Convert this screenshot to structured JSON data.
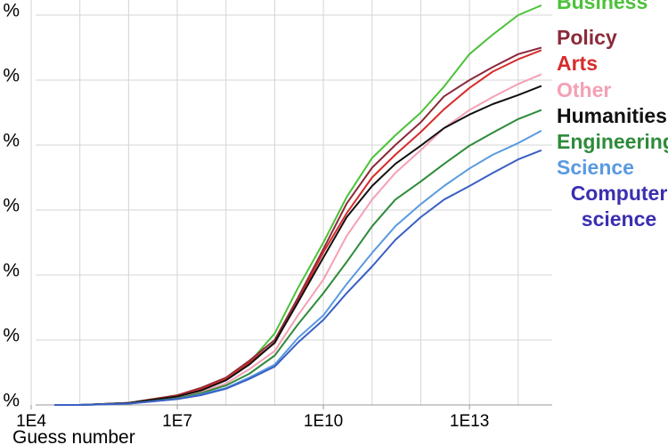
{
  "chart_data": {
    "type": "line",
    "x_label": "Guess number",
    "x": [
      30000,
      100000,
      1000000,
      10000000,
      30000000,
      100000000,
      300000000,
      1000000000,
      3000000000,
      10000000000,
      30000000000,
      100000000000,
      300000000000,
      1000000000000,
      3000000000000,
      10000000000000,
      30000000000000,
      100000000000000,
      300000000000000
    ],
    "xlim": [
      10000,
      500000000000000
    ],
    "xlog": true,
    "xticks": [
      {
        "value": 10000,
        "label": "1E4"
      },
      {
        "value": 10000000,
        "label": "1E7"
      },
      {
        "value": 10000000000,
        "label": "1E10"
      },
      {
        "value": 10000000000000,
        "label": "1E13"
      }
    ],
    "ylim": [
      0,
      62
    ],
    "yticks": [
      {
        "value": 0,
        "label": "%"
      },
      {
        "value": 10,
        "label": "%"
      },
      {
        "value": 20,
        "label": "%"
      },
      {
        "value": 30,
        "label": "%"
      },
      {
        "value": 40,
        "label": "%"
      },
      {
        "value": 50,
        "label": "%"
      },
      {
        "value": 60,
        "label": "%"
      }
    ],
    "grid": true,
    "series": [
      {
        "name": "Business",
        "color": "#4cc23a",
        "values": [
          0,
          0,
          0.3,
          1.5,
          2.4,
          4,
          6.5,
          11,
          18,
          25,
          32,
          38,
          41.5,
          45,
          49,
          54,
          57,
          60,
          61.5
        ]
      },
      {
        "name": "Policy",
        "color": "#8b2a3a",
        "values": [
          0,
          0,
          0.3,
          1.5,
          2.6,
          4.2,
          6.8,
          10,
          16.5,
          24,
          31,
          36.5,
          40,
          43.5,
          47.5,
          50,
          52,
          54,
          55
        ]
      },
      {
        "name": "Arts",
        "color": "#d62c2c",
        "values": [
          0,
          0,
          0.3,
          1.4,
          2.4,
          4,
          6.5,
          9.5,
          16,
          23.5,
          29.5,
          35,
          38.5,
          42,
          45.5,
          48.8,
          51.3,
          53.2,
          54.6
        ]
      },
      {
        "name": "Other",
        "color": "#f4a0b5",
        "values": [
          0,
          0,
          0.2,
          1.2,
          2,
          3.3,
          5.5,
          8.3,
          13.8,
          19.3,
          26,
          31.6,
          35.7,
          39.2,
          42.6,
          45.4,
          47.4,
          49.4,
          50.9
        ]
      },
      {
        "name": "Humanities",
        "color": "#111111",
        "values": [
          0,
          0,
          0.3,
          1.3,
          2.2,
          3.8,
          6.2,
          9.6,
          15.8,
          22.7,
          28.9,
          33.7,
          37.1,
          39.9,
          42.6,
          44.7,
          46.3,
          47.7,
          49.1
        ]
      },
      {
        "name": "Engineering",
        "color": "#2e8b3a",
        "values": [
          0,
          0,
          0.2,
          1,
          1.8,
          3,
          4.8,
          7.6,
          12.4,
          17.2,
          22,
          27.5,
          31.6,
          34.4,
          37.1,
          39.9,
          41.9,
          44,
          45.4
        ]
      },
      {
        "name": "Science",
        "color": "#5a9ae0",
        "values": [
          0,
          0,
          0.2,
          0.9,
          1.6,
          2.6,
          4.2,
          6.2,
          10.3,
          13.8,
          18.6,
          23.4,
          27.5,
          30.9,
          33.7,
          36.4,
          38.5,
          40.3,
          42.2
        ]
      },
      {
        "name": "Computer science",
        "color": "#3a5fc4",
        "values": [
          0,
          0,
          0.2,
          0.9,
          1.5,
          2.5,
          4,
          5.9,
          9.6,
          13.1,
          17.2,
          21.3,
          25.4,
          28.9,
          31.6,
          33.7,
          35.7,
          37.8,
          39.2
        ]
      }
    ]
  }
}
